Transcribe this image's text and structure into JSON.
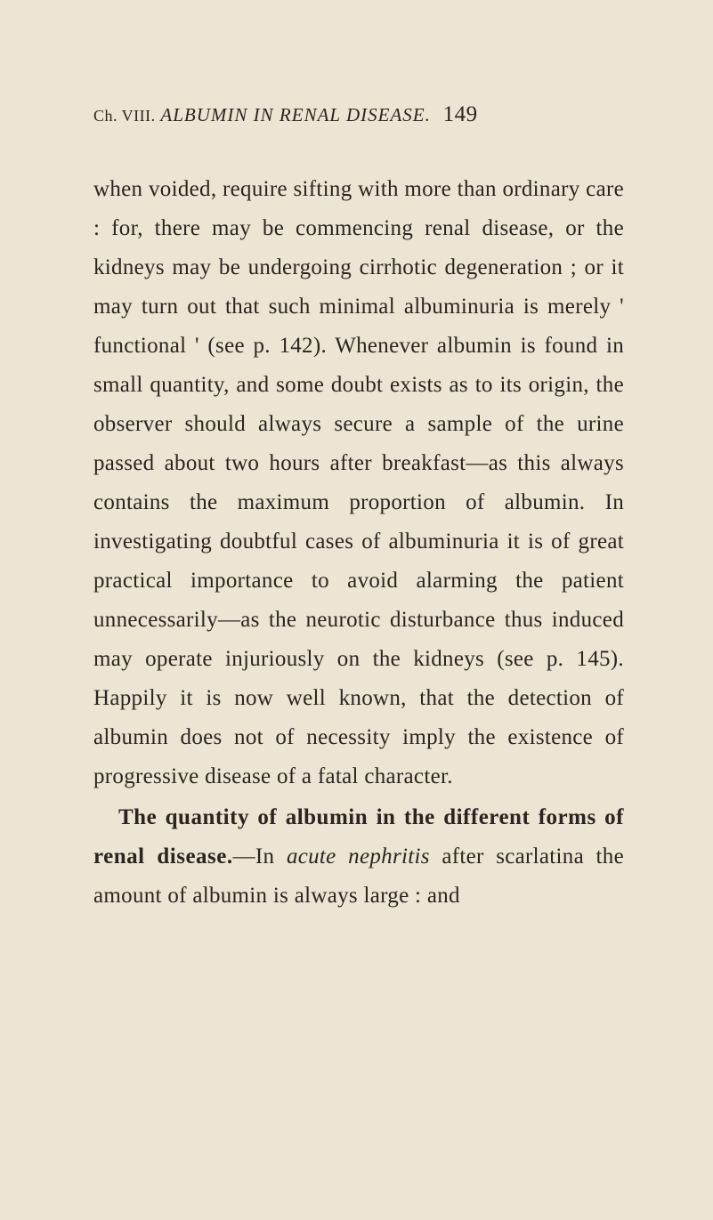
{
  "header": {
    "chapter_ref": "Ch. VIII.",
    "title": "ALBUMIN IN RENAL DISEASE.",
    "page_number": "149"
  },
  "paragraphs": {
    "p1": "when voided, require sifting with more than ordinary care : for, there may be commencing renal disease, or the kidneys may be undergoing cirrhotic degeneration ; or it may turn out that such minimal albuminuria is merely ' functional ' (see p. 142). Whenever albumin is found in small quantity, and some doubt exists as to its origin, the observer should always secure a sample of the urine passed about two hours after breakfast—as this always contains the maximum proportion of albumin. In investigating doubtful cases of albuminuria it is of great practical importance to avoid alarming the patient unnecessarily—as the neurotic disturbance thus induced may operate injuriously on the kidneys (see p. 145). Happily it is now well known, that the detection of albumin does not of necessity imply the existence of progressive disease of a fatal character.",
    "p2_heading": "The quantity of albumin in the different forms of renal disease.",
    "p2_text_prefix": "—In ",
    "p2_italic": "acute nephritis",
    "p2_text_suffix": " after scarlatina the amount of albumin is always large : and"
  },
  "colors": {
    "background": "#ede5d3",
    "text": "#2a2520"
  },
  "typography": {
    "body_fontsize": 25,
    "header_fontsize": 21,
    "line_height": 1.76
  }
}
